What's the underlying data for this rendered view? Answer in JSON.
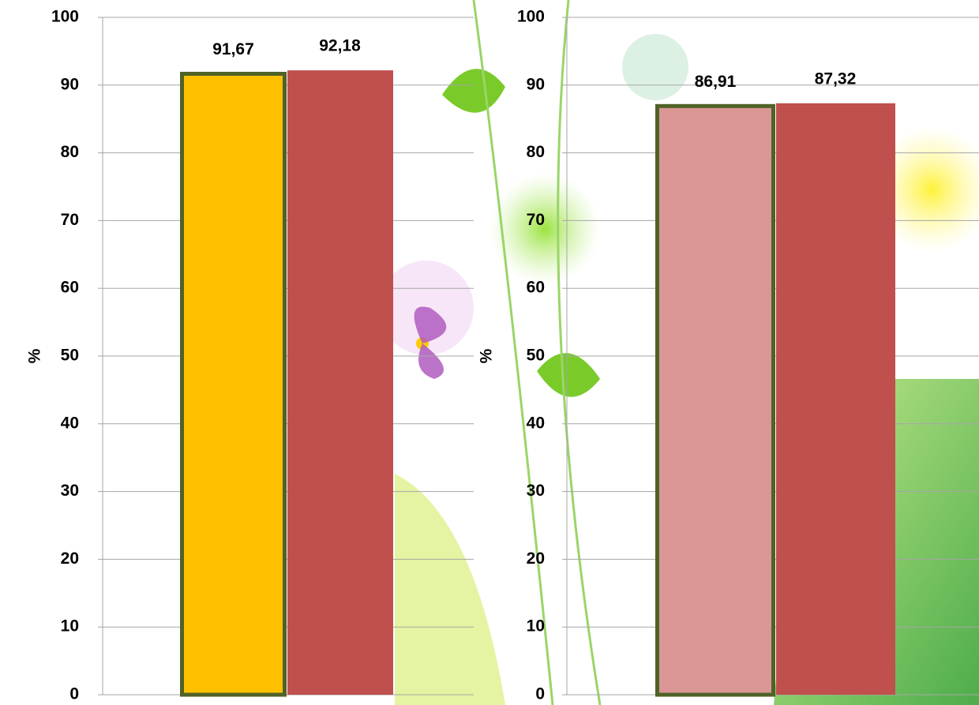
{
  "chart_data": [
    {
      "type": "bar",
      "y_label": "%",
      "values": [
        91.67,
        92.18
      ],
      "value_labels": [
        "91,67",
        "92,18"
      ],
      "colors": [
        "#ffc000",
        "#c0504d"
      ],
      "outlined": [
        true,
        false
      ],
      "outline_color": "#4f6228",
      "ylim": [
        0,
        100
      ],
      "yticks": [
        0,
        10,
        20,
        30,
        40,
        50,
        60,
        70,
        80,
        90,
        100
      ],
      "grid": true
    },
    {
      "type": "bar",
      "y_label": "%",
      "values": [
        86.91,
        87.32
      ],
      "value_labels": [
        "86,91",
        "87,32"
      ],
      "colors": [
        "#d99694",
        "#c0504d"
      ],
      "outlined": [
        true,
        false
      ],
      "outline_color": "#4f6228",
      "ylim": [
        0,
        100
      ],
      "yticks": [
        0,
        10,
        20,
        30,
        40,
        50,
        60,
        70,
        80,
        90,
        100
      ],
      "grid": true
    }
  ]
}
